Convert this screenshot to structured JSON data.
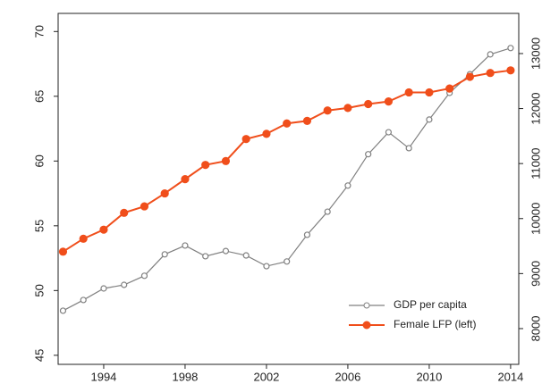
{
  "chart_data": {
    "type": "line",
    "x": [
      1992,
      1993,
      1994,
      1995,
      1996,
      1997,
      1998,
      1999,
      2000,
      2001,
      2002,
      2003,
      2004,
      2005,
      2006,
      2007,
      2008,
      2009,
      2010,
      2011,
      2012,
      2013,
      2014
    ],
    "xlim": [
      1991.76,
      2014.4
    ],
    "xticks": [
      1994,
      1998,
      2002,
      2006,
      2010,
      2014
    ],
    "ylim": [
      44.3,
      71.4
    ],
    "yticks": [
      45,
      50,
      55,
      60,
      65,
      70
    ],
    "y2lim": [
      7350,
      13730
    ],
    "y2ticks": [
      8000,
      9000,
      10000,
      11000,
      12000,
      13000
    ],
    "legend": "lower right",
    "series": [
      {
        "name": "GDP per capita",
        "color": "#808080",
        "axis": "y2",
        "marker": "open",
        "values": [
          8325,
          8520,
          8730,
          8795,
          8960,
          9350,
          9510,
          9315,
          9410,
          9330,
          9135,
          9220,
          9705,
          10125,
          10600,
          11170,
          11570,
          11280,
          11800,
          12285,
          12625,
          12985,
          13100
        ]
      },
      {
        "name": "Female LFP (left)",
        "color": "#f04e1b",
        "axis": "y",
        "marker": "filled",
        "values": [
          53.0,
          54.0,
          54.7,
          56.0,
          56.5,
          57.5,
          58.6,
          59.7,
          60.0,
          61.7,
          62.1,
          62.9,
          63.1,
          63.9,
          64.1,
          64.4,
          64.6,
          65.3,
          65.3,
          65.6,
          66.5,
          66.8,
          67.0
        ]
      }
    ]
  }
}
